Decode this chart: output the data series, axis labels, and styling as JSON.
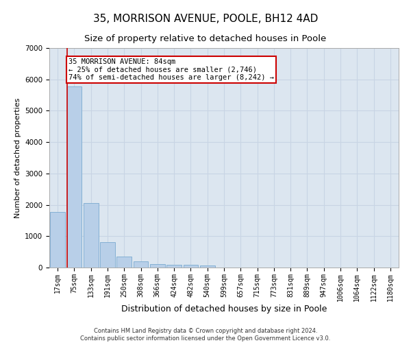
{
  "title": "35, MORRISON AVENUE, POOLE, BH12 4AD",
  "subtitle": "Size of property relative to detached houses in Poole",
  "xlabel": "Distribution of detached houses by size in Poole",
  "ylabel": "Number of detached properties",
  "bar_color": "#b8cfe8",
  "bar_edge_color": "#7aaad0",
  "grid_color": "#c8d4e4",
  "background_color": "#dce6f0",
  "vline_color": "#cc0000",
  "vline_x_index": 1,
  "annotation_line1": "35 MORRISON AVENUE: 84sqm",
  "annotation_line2": "← 25% of detached houses are smaller (2,746)",
  "annotation_line3": "74% of semi-detached houses are larger (8,242) →",
  "annotation_box_color": "#ffffff",
  "annotation_border_color": "#cc0000",
  "categories": [
    "17sqm",
    "75sqm",
    "133sqm",
    "191sqm",
    "250sqm",
    "308sqm",
    "366sqm",
    "424sqm",
    "482sqm",
    "540sqm",
    "599sqm",
    "657sqm",
    "715sqm",
    "773sqm",
    "831sqm",
    "889sqm",
    "947sqm",
    "1006sqm",
    "1064sqm",
    "1122sqm",
    "1180sqm"
  ],
  "values": [
    1780,
    5780,
    2060,
    820,
    340,
    190,
    115,
    95,
    90,
    75,
    0,
    0,
    0,
    0,
    0,
    0,
    0,
    0,
    0,
    0,
    0
  ],
  "ylim": [
    0,
    7000
  ],
  "yticks": [
    0,
    1000,
    2000,
    3000,
    4000,
    5000,
    6000,
    7000
  ],
  "footer_text": "Contains HM Land Registry data © Crown copyright and database right 2024.\nContains public sector information licensed under the Open Government Licence v3.0.",
  "title_fontsize": 11,
  "subtitle_fontsize": 9.5,
  "tick_fontsize": 7,
  "ylabel_fontsize": 8,
  "xlabel_fontsize": 9,
  "footer_fontsize": 6,
  "annotation_fontsize": 7.5
}
